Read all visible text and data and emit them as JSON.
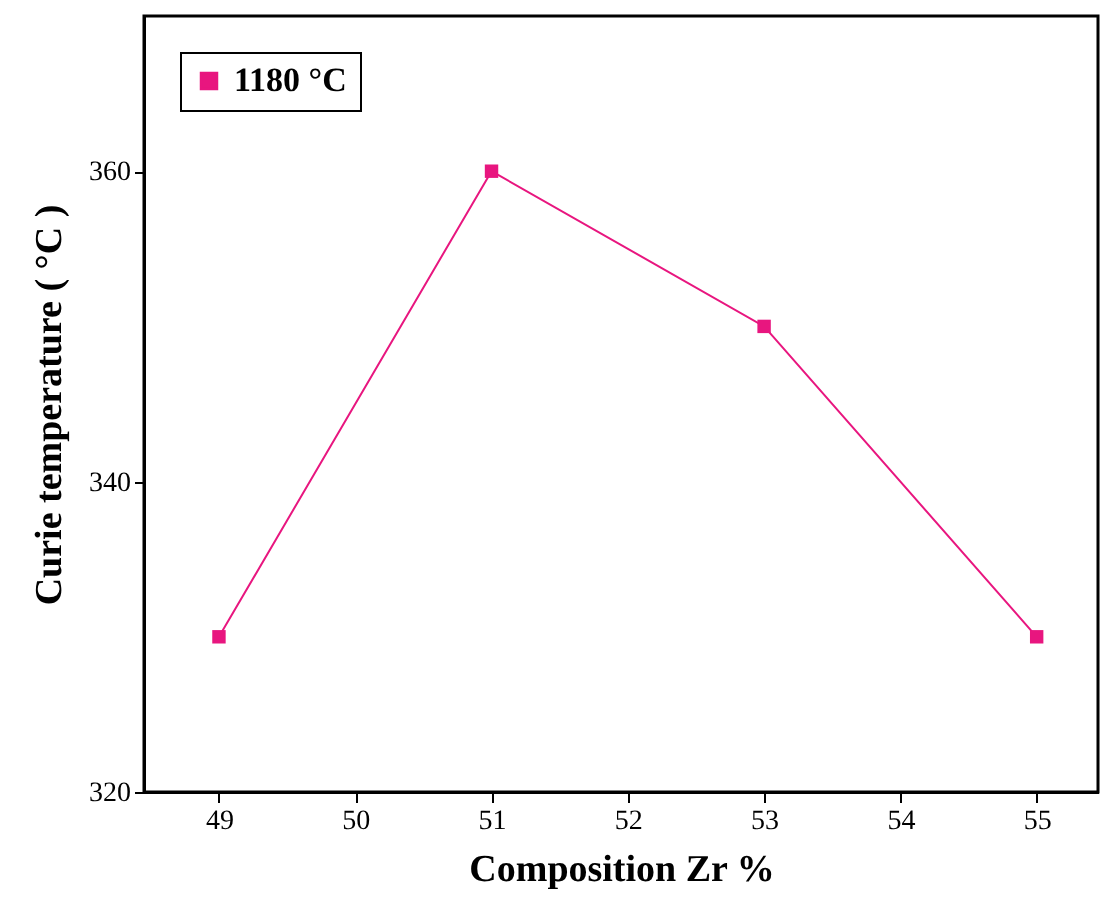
{
  "chart_data": {
    "type": "line",
    "xlabel": "Composition Zr %",
    "ylabel": "Curie temperature ( °C )",
    "x": [
      49,
      51,
      53,
      55
    ],
    "series": [
      {
        "name": "1180 °C",
        "color": "#e8167f",
        "values": [
          330,
          360,
          350,
          330
        ]
      }
    ],
    "xlim": [
      48.45,
      55.45
    ],
    "xticks": [
      49,
      50,
      51,
      52,
      53,
      54,
      55
    ],
    "ylim": [
      320,
      370
    ],
    "yticks": [
      320,
      340,
      360
    ],
    "grid": false,
    "legend": "top left",
    "marker": "square",
    "line_style": "solid"
  }
}
